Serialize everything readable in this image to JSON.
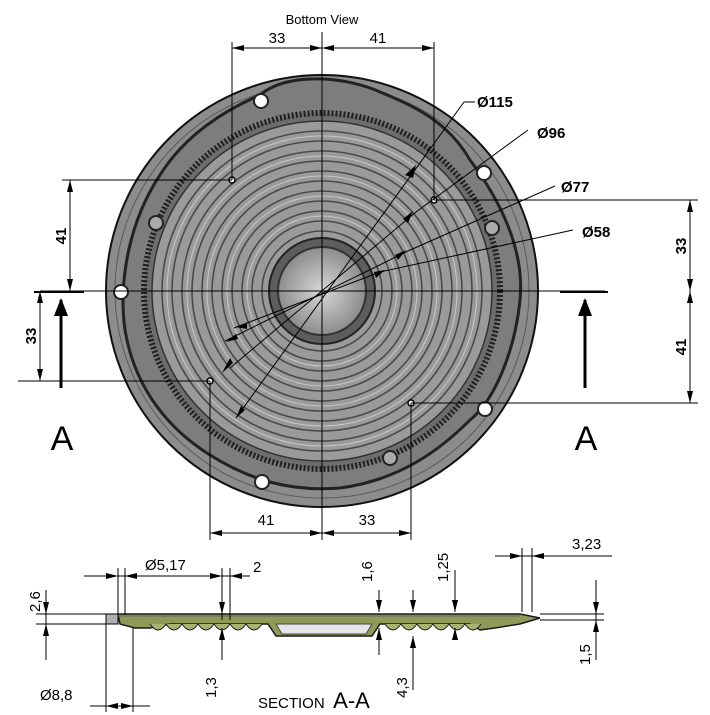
{
  "title": "Bottom View",
  "section_label_prefix": "SECTION",
  "section_label_letter": "A-A",
  "section_marker": "A",
  "diameters": [
    "Ø115",
    "Ø96",
    "Ø77",
    "Ø58"
  ],
  "top_dims": {
    "left": "33",
    "right": "41"
  },
  "bottom_dims": {
    "left": "41",
    "right": "33"
  },
  "left_dims": {
    "upper": "41",
    "lower": "33"
  },
  "right_dims": {
    "upper": "33",
    "lower": "41"
  },
  "section_dims": {
    "d_5_17": "Ø5,17",
    "d_2": "2",
    "d_1_6": "1,6",
    "d_1_25": "1,25",
    "d_3_23": "3,23",
    "d_2_6": "2,6",
    "d_1_3": "1,3",
    "d_4_3": "4,3",
    "d_1_5": "1,5",
    "d_8_8": "Ø8,8"
  },
  "colors": {
    "body": "#8a8a8a",
    "dark": "#3a3a3a",
    "section_green": "#8f9a58",
    "line": "#000000"
  }
}
